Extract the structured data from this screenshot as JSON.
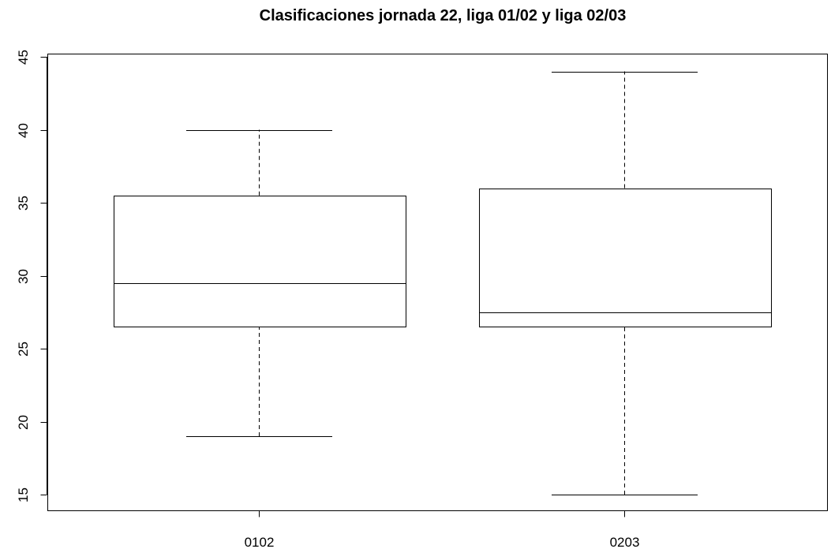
{
  "chart_data": {
    "type": "boxplot",
    "title": "Clasificaciones jornada 22, liga 01/02 y liga 02/03",
    "xlabel": "",
    "ylabel": "",
    "categories": [
      "0102",
      "0203"
    ],
    "boxes": [
      {
        "category": "0102",
        "min": 19,
        "q1": 26.5,
        "median": 29.5,
        "q3": 35.5,
        "max": 40
      },
      {
        "category": "0203",
        "min": 15,
        "q1": 26.5,
        "median": 27.5,
        "q3": 36,
        "max": 44
      }
    ],
    "ylim": [
      14,
      45.3
    ],
    "yticks": [
      15,
      20,
      25,
      30,
      35,
      40,
      45
    ],
    "grid": false,
    "legend": "none",
    "colors": {
      "box_fill": "#ffffff",
      "stroke": "#000000"
    }
  }
}
